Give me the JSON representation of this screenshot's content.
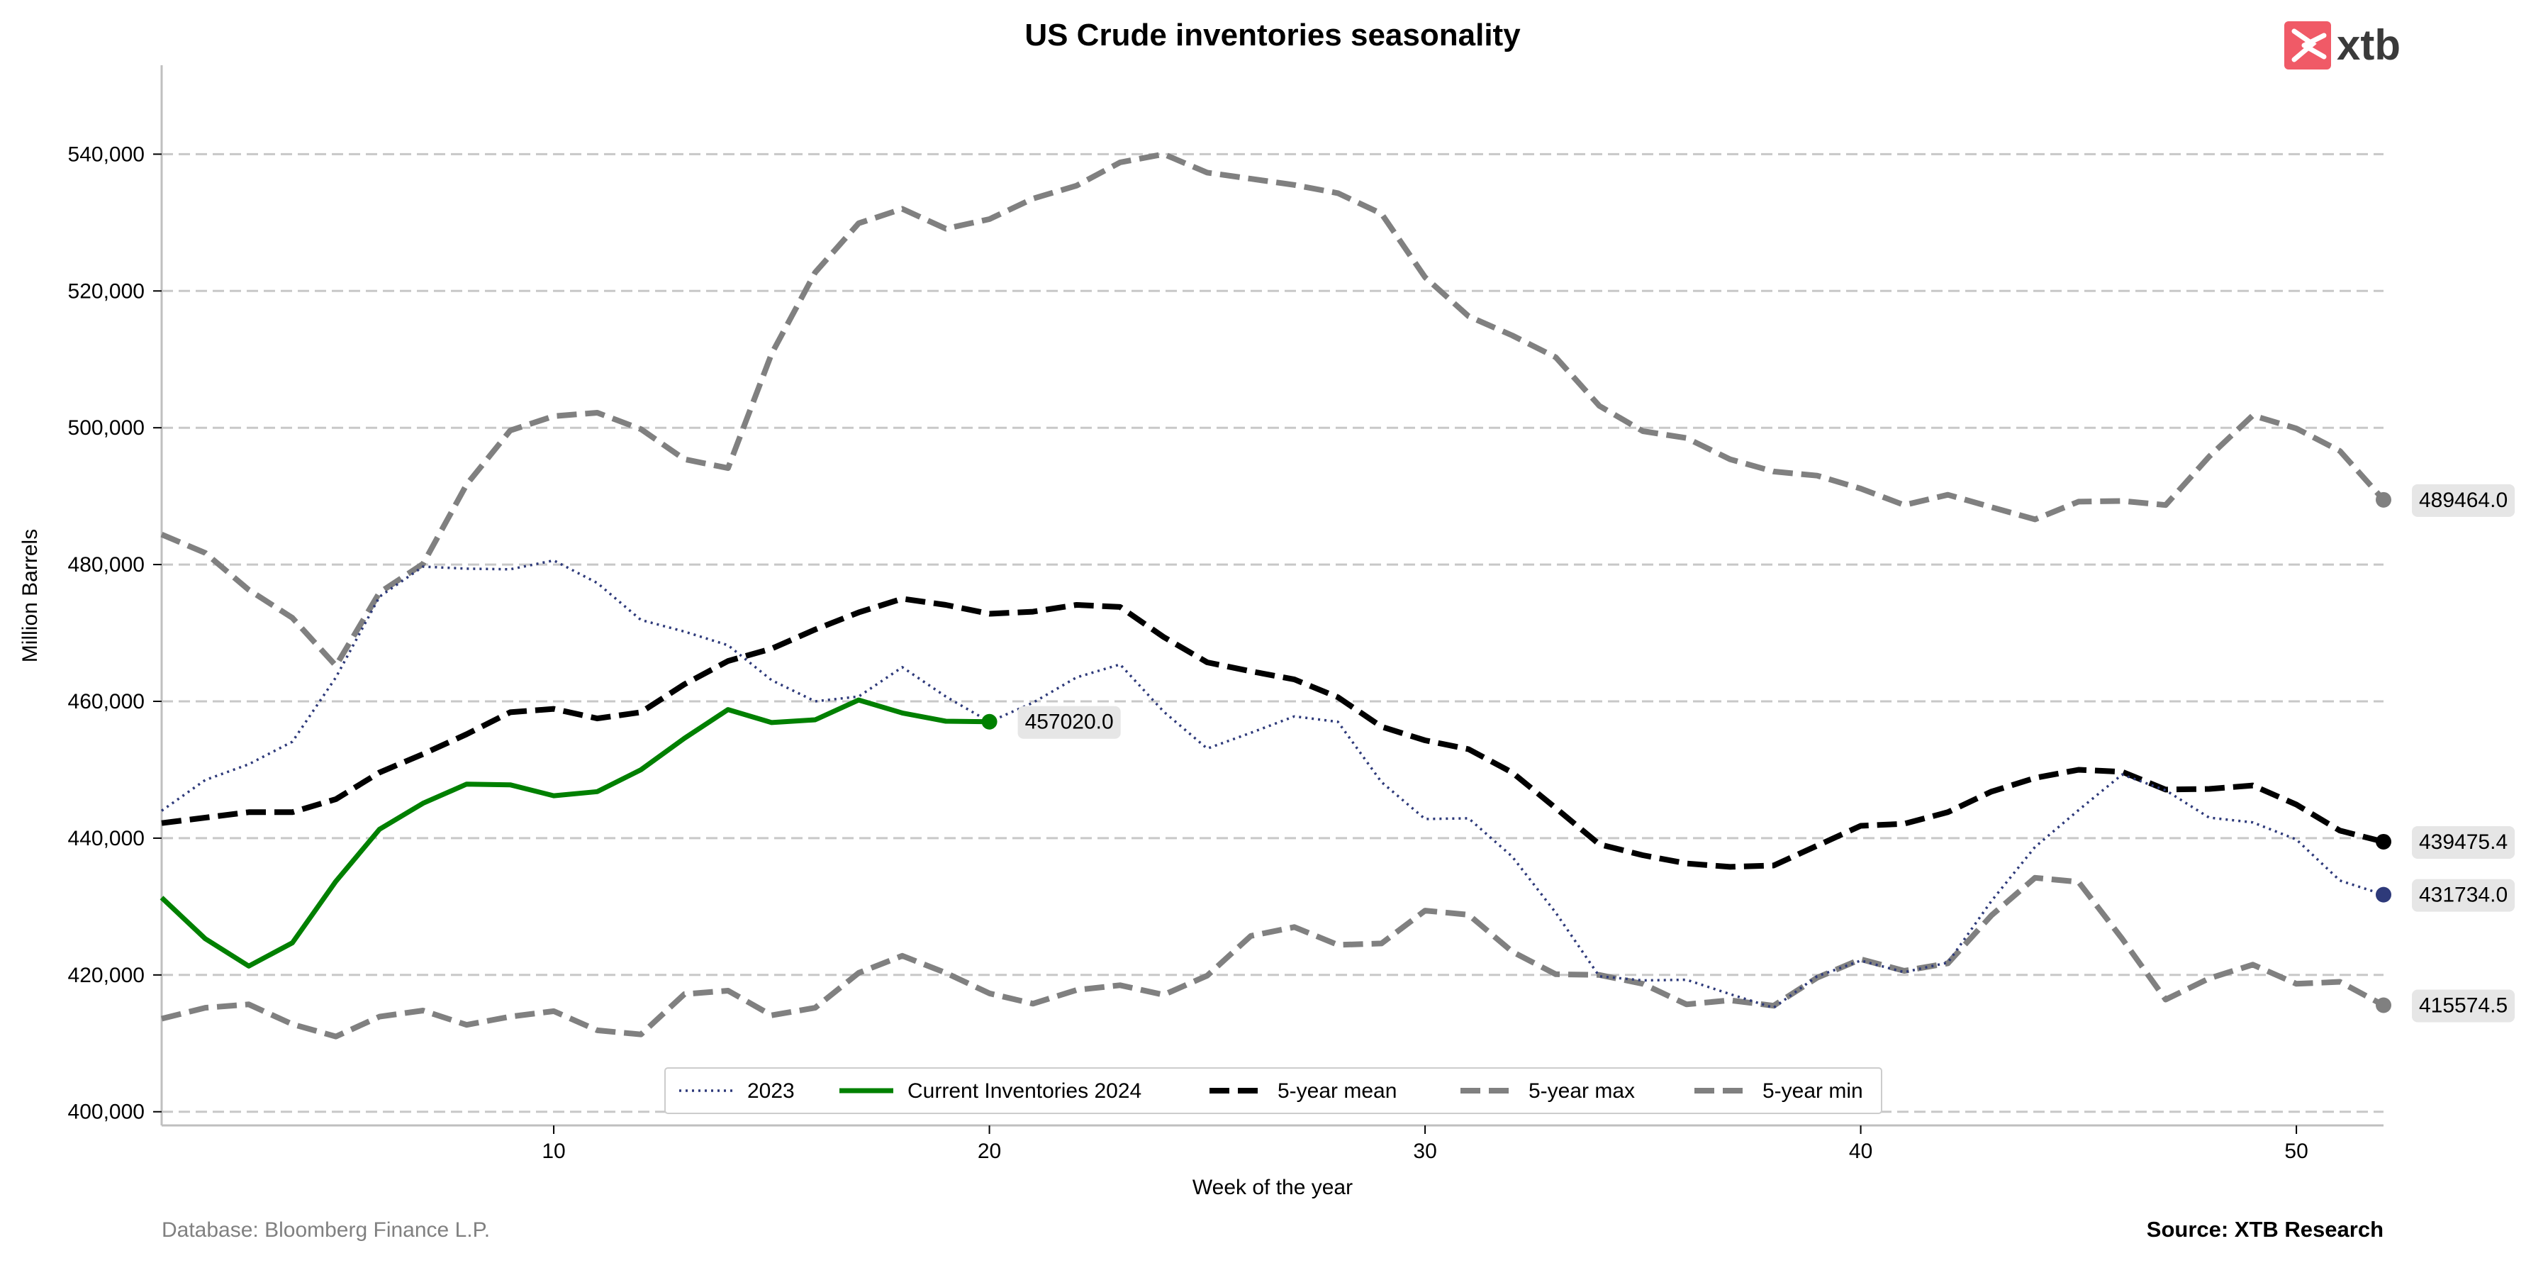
{
  "chart_data": {
    "type": "line",
    "title": "US Crude inventories seasonality",
    "xlabel": "Week of the year",
    "ylabel": "Million Barrels",
    "xlim": [
      1,
      52
    ],
    "ylim": [
      398000,
      553000
    ],
    "xticks": [
      10,
      20,
      30,
      40,
      50
    ],
    "yticks": [
      400000,
      420000,
      440000,
      460000,
      480000,
      500000,
      520000,
      540000
    ],
    "ytick_labels": [
      "400,000",
      "420,000",
      "440,000",
      "460,000",
      "480,000",
      "500,000",
      "520,000",
      "540,000"
    ],
    "grid": "horizontal-dashed",
    "legend_position": "bottom-center",
    "series": [
      {
        "name": "2023",
        "color": "#2e3a7a",
        "style": "dotted",
        "end_label": "431734.0",
        "values": [
          444000,
          448500,
          450800,
          454100,
          463500,
          475300,
          479700,
          479400,
          479300,
          480600,
          477300,
          471900,
          470200,
          468200,
          463100,
          460000,
          460700,
          465000,
          460700,
          457000,
          459800,
          463500,
          465400,
          458500,
          453100,
          455400,
          457800,
          457000,
          448200,
          442800,
          442900,
          437300,
          429100,
          419800,
          419200,
          419300,
          417200,
          415200,
          419800,
          422100,
          420400,
          421800,
          430800,
          438700,
          444100,
          449300,
          447000,
          443000,
          442300,
          439800,
          433800,
          431734
        ]
      },
      {
        "name": "Current Inventories 2024",
        "color": "#008000",
        "style": "solid",
        "end_label": "457020.0",
        "values": [
          431300,
          425300,
          421300,
          424700,
          433700,
          441300,
          445100,
          447900,
          447800,
          446200,
          446800,
          450000,
          454600,
          458800,
          456900,
          457300,
          460200,
          458300,
          457100,
          457020
        ]
      },
      {
        "name": "5-year mean",
        "color": "#000000",
        "style": "dashed",
        "end_label": "439475.4",
        "values": [
          442200,
          443000,
          443800,
          443800,
          445700,
          449600,
          452300,
          455200,
          458400,
          458900,
          457500,
          458400,
          462500,
          465900,
          467700,
          470500,
          473000,
          475000,
          474100,
          472800,
          473100,
          474100,
          473800,
          469400,
          465700,
          464400,
          463200,
          460600,
          456300,
          454300,
          453000,
          449600,
          444400,
          439100,
          437500,
          436300,
          435800,
          436000,
          438900,
          441800,
          442100,
          443800,
          446800,
          448800,
          450000,
          449700,
          447100,
          447200,
          447700,
          444900,
          441100,
          439475
        ]
      },
      {
        "name": "5-year max",
        "color": "#808080",
        "style": "dashed",
        "end_label": "489464.0",
        "values": [
          484400,
          481700,
          476300,
          472200,
          465200,
          475900,
          480100,
          491700,
          499600,
          501700,
          502200,
          499800,
          495400,
          494100,
          510800,
          522700,
          529900,
          532000,
          529100,
          530500,
          533500,
          535400,
          538800,
          540000,
          537300,
          536400,
          535500,
          534300,
          531300,
          522000,
          516300,
          513500,
          510300,
          503200,
          499500,
          498500,
          495400,
          493600,
          493000,
          491100,
          488700,
          490200,
          488400,
          486600,
          489200,
          489300,
          488700,
          495800,
          501800,
          499900,
          496600,
          489464
        ]
      },
      {
        "name": "5-year min",
        "color": "#808080",
        "style": "dashed",
        "end_label": "415574.5",
        "values": [
          413600,
          415200,
          415700,
          412800,
          411000,
          413900,
          414800,
          412700,
          413900,
          414700,
          411900,
          411300,
          417200,
          417700,
          414100,
          415200,
          420300,
          422800,
          420300,
          417300,
          415800,
          417800,
          418500,
          417100,
          419900,
          425700,
          427000,
          424400,
          424600,
          429400,
          428800,
          423400,
          420100,
          420000,
          418700,
          415700,
          416300,
          415500,
          419600,
          422300,
          420600,
          421700,
          428700,
          434200,
          433600,
          425300,
          416400,
          419500,
          421500,
          418700,
          419000,
          415575
        ]
      }
    ]
  },
  "footer": {
    "database": "Database: Bloomberg Finance L.P.",
    "source": "Source: XTB Research"
  },
  "logo": {
    "text": "xtb",
    "color": "#f05a67"
  }
}
